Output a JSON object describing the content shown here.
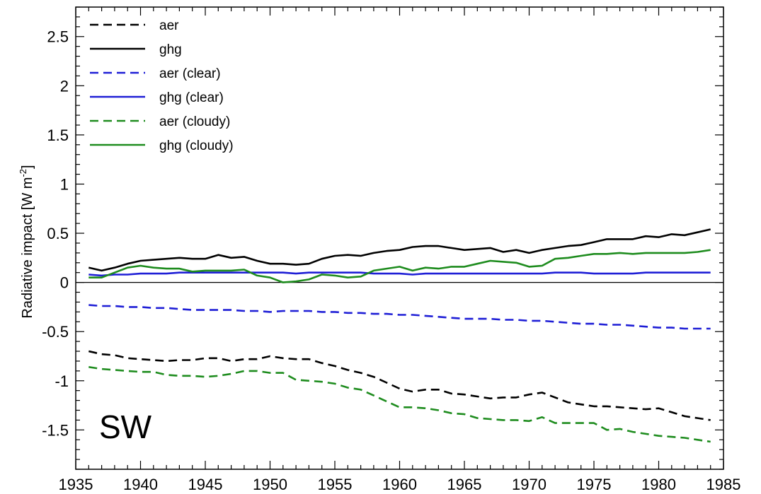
{
  "chart_data": {
    "type": "line",
    "title": "",
    "xlabel": "",
    "ylabel": "Radiative impact [W m",
    "ylabel_superscript": "-2",
    "ylabel_close": "]",
    "panel_label": "SW",
    "xlim": [
      1935,
      1985
    ],
    "ylim": [
      -1.9,
      2.8
    ],
    "x_ticks": [
      1935,
      1940,
      1945,
      1950,
      1955,
      1960,
      1965,
      1970,
      1975,
      1980,
      1985
    ],
    "x_tick_labels": [
      "1935",
      "1940",
      "1945",
      "1950",
      "1955",
      "1960",
      "1965",
      "1970",
      "1975",
      "1980",
      "1985"
    ],
    "y_ticks": [
      -1.5,
      -1,
      -0.5,
      0,
      0.5,
      1,
      1.5,
      2,
      2.5
    ],
    "y_tick_labels": [
      "-1.5",
      "-1",
      "-0.5",
      "0",
      "0.5",
      "1",
      "1.5",
      "2",
      "2.5"
    ],
    "zero_line": true,
    "grid": false,
    "legend_position": "top-left",
    "x": [
      1936,
      1937,
      1938,
      1939,
      1940,
      1941,
      1942,
      1943,
      1944,
      1945,
      1946,
      1947,
      1948,
      1949,
      1950,
      1951,
      1952,
      1953,
      1954,
      1955,
      1956,
      1957,
      1958,
      1959,
      1960,
      1961,
      1962,
      1963,
      1964,
      1965,
      1966,
      1967,
      1968,
      1969,
      1970,
      1971,
      1972,
      1973,
      1974,
      1975,
      1976,
      1977,
      1978,
      1979,
      1980,
      1981,
      1982,
      1983,
      1984
    ],
    "series": [
      {
        "name": "aer",
        "color": "#000000",
        "dash": true,
        "values": [
          -0.7,
          -0.73,
          -0.74,
          -0.77,
          -0.78,
          -0.79,
          -0.8,
          -0.79,
          -0.79,
          -0.77,
          -0.77,
          -0.8,
          -0.78,
          -0.78,
          -0.75,
          -0.77,
          -0.78,
          -0.78,
          -0.82,
          -0.85,
          -0.89,
          -0.92,
          -0.96,
          -1.02,
          -1.08,
          -1.11,
          -1.09,
          -1.09,
          -1.13,
          -1.14,
          -1.16,
          -1.18,
          -1.17,
          -1.17,
          -1.14,
          -1.12,
          -1.17,
          -1.22,
          -1.24,
          -1.26,
          -1.26,
          -1.27,
          -1.28,
          -1.29,
          -1.28,
          -1.32,
          -1.36,
          -1.38,
          -1.4
        ]
      },
      {
        "name": "ghg",
        "color": "#000000",
        "dash": false,
        "values": [
          0.15,
          0.12,
          0.15,
          0.19,
          0.22,
          0.23,
          0.24,
          0.25,
          0.24,
          0.24,
          0.28,
          0.25,
          0.26,
          0.22,
          0.19,
          0.19,
          0.18,
          0.19,
          0.24,
          0.27,
          0.28,
          0.27,
          0.3,
          0.32,
          0.33,
          0.36,
          0.37,
          0.37,
          0.35,
          0.33,
          0.34,
          0.35,
          0.31,
          0.33,
          0.3,
          0.33,
          0.35,
          0.37,
          0.38,
          0.41,
          0.44,
          0.44,
          0.44,
          0.47,
          0.46,
          0.49,
          0.48,
          0.51,
          0.54
        ]
      },
      {
        "name": "aer (clear)",
        "color": "#1f1fd6",
        "dash": true,
        "values": [
          -0.23,
          -0.24,
          -0.24,
          -0.25,
          -0.25,
          -0.26,
          -0.26,
          -0.27,
          -0.28,
          -0.28,
          -0.28,
          -0.28,
          -0.29,
          -0.29,
          -0.3,
          -0.29,
          -0.29,
          -0.29,
          -0.3,
          -0.3,
          -0.31,
          -0.31,
          -0.32,
          -0.32,
          -0.33,
          -0.33,
          -0.34,
          -0.35,
          -0.36,
          -0.37,
          -0.37,
          -0.37,
          -0.38,
          -0.38,
          -0.39,
          -0.39,
          -0.4,
          -0.41,
          -0.42,
          -0.42,
          -0.43,
          -0.43,
          -0.44,
          -0.45,
          -0.46,
          -0.46,
          -0.47,
          -0.47,
          -0.47
        ]
      },
      {
        "name": "ghg (clear)",
        "color": "#1f1fd6",
        "dash": false,
        "values": [
          0.08,
          0.07,
          0.08,
          0.08,
          0.09,
          0.09,
          0.09,
          0.1,
          0.1,
          0.1,
          0.1,
          0.1,
          0.1,
          0.1,
          0.1,
          0.1,
          0.09,
          0.1,
          0.1,
          0.1,
          0.1,
          0.1,
          0.09,
          0.09,
          0.09,
          0.08,
          0.09,
          0.09,
          0.09,
          0.09,
          0.09,
          0.09,
          0.09,
          0.09,
          0.09,
          0.09,
          0.1,
          0.1,
          0.1,
          0.09,
          0.09,
          0.09,
          0.09,
          0.1,
          0.1,
          0.1,
          0.1,
          0.1,
          0.1
        ]
      },
      {
        "name": "aer (cloudy)",
        "color": "#1e8c1e",
        "dash": true,
        "values": [
          -0.86,
          -0.88,
          -0.89,
          -0.9,
          -0.91,
          -0.91,
          -0.94,
          -0.95,
          -0.95,
          -0.96,
          -0.95,
          -0.93,
          -0.9,
          -0.9,
          -0.92,
          -0.92,
          -0.99,
          -1.0,
          -1.01,
          -1.03,
          -1.07,
          -1.09,
          -1.15,
          -1.21,
          -1.27,
          -1.27,
          -1.28,
          -1.3,
          -1.33,
          -1.34,
          -1.38,
          -1.39,
          -1.4,
          -1.4,
          -1.41,
          -1.37,
          -1.43,
          -1.43,
          -1.43,
          -1.43,
          -1.5,
          -1.49,
          -1.52,
          -1.54,
          -1.56,
          -1.57,
          -1.58,
          -1.6,
          -1.62
        ]
      },
      {
        "name": "ghg (cloudy)",
        "color": "#1e8c1e",
        "dash": false,
        "values": [
          0.05,
          0.05,
          0.1,
          0.15,
          0.17,
          0.15,
          0.14,
          0.14,
          0.11,
          0.12,
          0.12,
          0.12,
          0.13,
          0.07,
          0.05,
          0.0,
          0.01,
          0.03,
          0.08,
          0.07,
          0.05,
          0.06,
          0.12,
          0.14,
          0.16,
          0.12,
          0.15,
          0.14,
          0.16,
          0.16,
          0.19,
          0.22,
          0.21,
          0.2,
          0.16,
          0.17,
          0.24,
          0.25,
          0.27,
          0.29,
          0.29,
          0.3,
          0.29,
          0.3,
          0.3,
          0.3,
          0.3,
          0.31,
          0.33
        ]
      }
    ]
  }
}
